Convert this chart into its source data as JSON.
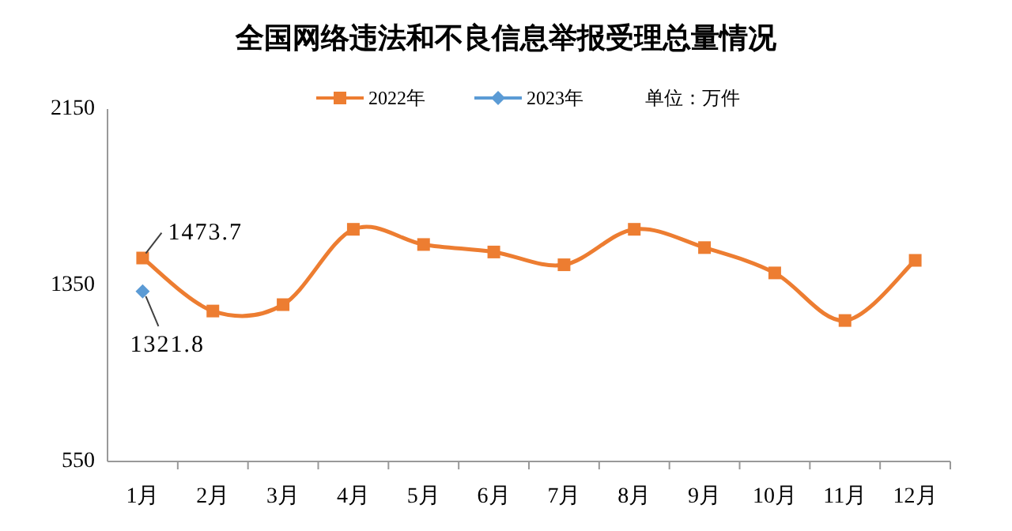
{
  "chart_data": {
    "type": "line",
    "title": "全国网络违法和不良信息举报受理总量情况",
    "categories": [
      "1月",
      "2月",
      "3月",
      "4月",
      "5月",
      "6月",
      "7月",
      "8月",
      "9月",
      "10月",
      "11月",
      "12月"
    ],
    "series": [
      {
        "name": "2022年",
        "color": "#ed7d31",
        "marker": "square",
        "values": [
          1473.7,
          1233,
          1262,
          1604,
          1535,
          1501,
          1443,
          1604,
          1521,
          1406,
          1190,
          1463
        ],
        "value_labels": [
          "1473.7",
          null,
          null,
          null,
          null,
          null,
          null,
          null,
          null,
          null,
          null,
          null
        ]
      },
      {
        "name": "2023年",
        "color": "#5b9bd5",
        "marker": "diamond",
        "values": [
          1321.8,
          null,
          null,
          null,
          null,
          null,
          null,
          null,
          null,
          null,
          null,
          null
        ],
        "value_labels": [
          "1321.8",
          null,
          null,
          null,
          null,
          null,
          null,
          null,
          null,
          null,
          null,
          null
        ]
      }
    ],
    "ylim": [
      550,
      2150
    ],
    "yticks": [
      550,
      1350,
      2150
    ],
    "grid": false,
    "legend": "top",
    "line_style": "solid",
    "annotations": [
      "单位：万件"
    ]
  }
}
